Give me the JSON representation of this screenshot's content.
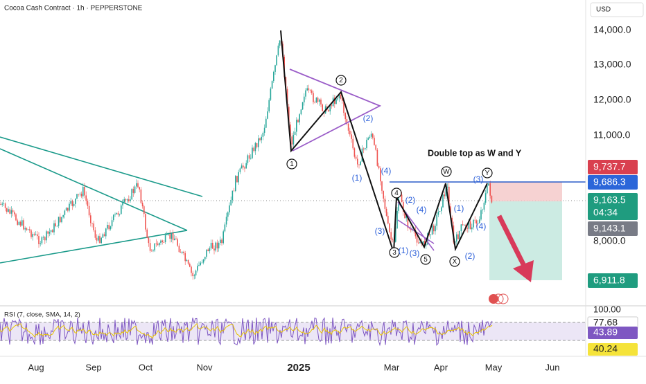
{
  "header": {
    "title": "Cocoa Cash Contract · 1h · PEPPERSTONE",
    "currency": "USD"
  },
  "price_axis": [
    "14,000.0",
    "13,000.0",
    "12,000.0",
    "11,000.0",
    "8,000.0"
  ],
  "price_tags": {
    "stop": "9,737.7",
    "entry": "9,686.3",
    "last": "9,163.5",
    "countdown": "04:34",
    "previous": "9,143.1",
    "target": "6,911.8"
  },
  "time_axis": [
    "Aug",
    "Sep",
    "Oct",
    "Nov",
    "2025",
    "Mar",
    "Apr",
    "May",
    "Jun"
  ],
  "annotation": "Double top as W and Y",
  "waves": {
    "major": [
      "1",
      "2",
      "3",
      "4",
      "5",
      "W",
      "X",
      "Y"
    ],
    "minor": [
      "(1)",
      "(2)",
      "(3)",
      "(4)",
      "(1)",
      "(2)",
      "(3)",
      "(4)",
      "(1)",
      "(2)",
      "(3)",
      "(4)"
    ]
  },
  "rsi": {
    "title": "RSI (7, close, SMA, 14, 2)",
    "scale": "100.00",
    "levels": [
      "77.68",
      "43.89",
      "40.24"
    ]
  }
}
